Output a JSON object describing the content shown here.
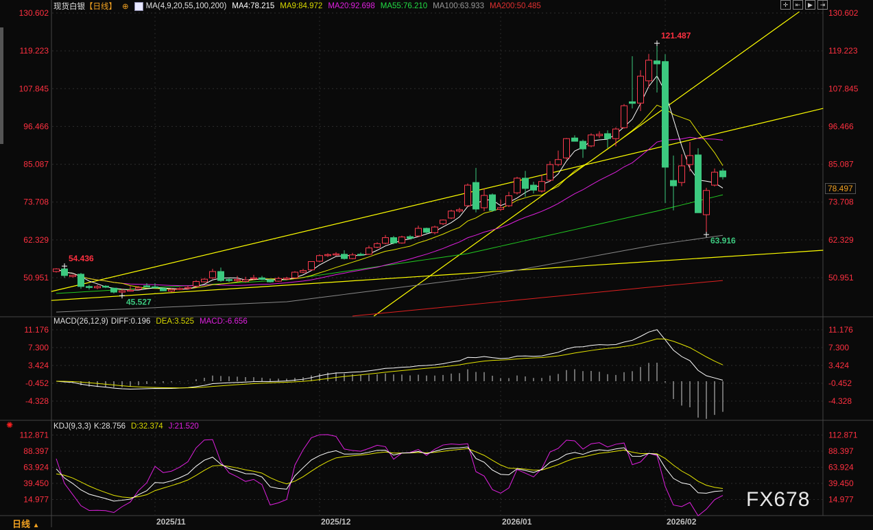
{
  "header": {
    "instrument": "现货白银",
    "period_tag": "【日线】",
    "ma_params": "MA(4,9,20,55,100,200)",
    "ma4": "MA4:78.215",
    "ma9": "MA9:84.972",
    "ma20": "MA20:92.698",
    "ma55": "MA55:76.210",
    "ma100": "MA100:63.933",
    "ma200": "MA200:50.485"
  },
  "macd_header": {
    "params": "MACD(26,12,9)",
    "diff": "DIFF:0.196",
    "dea": "DEA:3.525",
    "macd": "MACD:-6.656"
  },
  "kdj_header": {
    "params": "KDJ(9,3,3)",
    "k": "K:28.756",
    "d": "D:32.374",
    "j": "J:21.520"
  },
  "footer": {
    "period": "日线",
    "period_icon": "triangle-up-icon",
    "watermark": "FX678"
  },
  "current_price_tag": "78.497",
  "colors": {
    "up": "#ff3b4e",
    "down": "#3cc97f",
    "ma4": "#ffffff",
    "ma9": "#e6e600",
    "ma20": "#e020e0",
    "ma55": "#22cc22",
    "ma100": "#888888",
    "ma200": "#e02020",
    "trendline": "#ffff00",
    "axis_text": "#ff3040"
  },
  "chart_data": [
    {
      "type": "candlestick",
      "title": "现货白银【日线】",
      "ylim": [
        39.2,
        134.5
      ],
      "y_ticks": [
        "130.602",
        "119.223",
        "107.845",
        "96.466",
        "85.087",
        "73.708",
        "62.329",
        "50.951"
      ],
      "x_month_labels": [
        {
          "index": 12,
          "label": "2025/11"
        },
        {
          "index": 32,
          "label": "2025/12"
        },
        {
          "index": 54,
          "label": "2026/01"
        },
        {
          "index": 74,
          "label": "2026/02"
        }
      ],
      "annotations": [
        {
          "index": 1,
          "value": 54.436,
          "text": "54.436",
          "pos": "high"
        },
        {
          "index": 8,
          "value": 45.527,
          "text": "45.527",
          "pos": "low"
        },
        {
          "index": 73,
          "value": 121.487,
          "text": "121.487",
          "pos": "high"
        },
        {
          "index": 79,
          "value": 63.916,
          "text": "63.916",
          "pos": "low"
        }
      ],
      "ohlc": [
        [
          52.8,
          53.8,
          52.5,
          53.6
        ],
        [
          53.6,
          54.44,
          50.9,
          51.6
        ],
        [
          51.3,
          51.9,
          51.0,
          51.7
        ],
        [
          52.0,
          52.4,
          47.6,
          48.3
        ],
        [
          48.3,
          48.8,
          47.4,
          48.1
        ],
        [
          47.9,
          48.8,
          47.5,
          48.3
        ],
        [
          48.4,
          48.7,
          47.8,
          48.1
        ],
        [
          47.8,
          47.9,
          46.2,
          46.6
        ],
        [
          46.6,
          47.6,
          45.53,
          47.0
        ],
        [
          46.9,
          48.4,
          46.8,
          47.2
        ],
        [
          47.5,
          48.4,
          47.2,
          48.0
        ],
        [
          48.5,
          49.3,
          48.2,
          48.3
        ],
        [
          48.2,
          49.3,
          47.8,
          48.0
        ],
        [
          47.7,
          47.9,
          46.9,
          47.0
        ],
        [
          46.9,
          47.8,
          46.6,
          47.4
        ],
        [
          47.5,
          48.0,
          47.2,
          47.7
        ],
        [
          47.7,
          48.5,
          47.4,
          48.0
        ],
        [
          48.4,
          50.2,
          48.0,
          49.8
        ],
        [
          49.7,
          50.8,
          49.5,
          50.5
        ],
        [
          50.9,
          53.6,
          50.6,
          52.8
        ],
        [
          52.8,
          54.0,
          49.7,
          50.1
        ],
        [
          50.4,
          51.0,
          49.6,
          50.2
        ],
        [
          50.3,
          51.5,
          49.5,
          50.4
        ],
        [
          49.8,
          51.2,
          49.5,
          50.3
        ],
        [
          50.6,
          51.8,
          50.3,
          50.9
        ],
        [
          50.9,
          51.5,
          50.2,
          50.4
        ],
        [
          50.3,
          50.6,
          49.5,
          49.7
        ],
        [
          49.9,
          51.2,
          49.7,
          50.7
        ],
        [
          50.5,
          51.2,
          50.2,
          50.8
        ],
        [
          50.9,
          52.9,
          50.6,
          52.6
        ],
        [
          52.6,
          53.6,
          52.3,
          53.1
        ],
        [
          53.3,
          55.9,
          53.0,
          55.8
        ],
        [
          55.9,
          58.0,
          55.6,
          57.6
        ],
        [
          57.6,
          58.3,
          57.2,
          57.9
        ],
        [
          57.8,
          58.6,
          57.5,
          58.1
        ],
        [
          58.0,
          59.2,
          56.4,
          56.7
        ],
        [
          56.7,
          58.4,
          56.5,
          57.8
        ],
        [
          58.0,
          58.5,
          57.6,
          57.9
        ],
        [
          58.0,
          60.6,
          57.8,
          59.9
        ],
        [
          60.1,
          61.6,
          59.8,
          61.2
        ],
        [
          61.3,
          63.8,
          61.0,
          63.0
        ],
        [
          63.0,
          63.5,
          61.0,
          61.4
        ],
        [
          61.4,
          63.6,
          61.2,
          63.2
        ],
        [
          63.3,
          63.8,
          62.5,
          62.8
        ],
        [
          63.5,
          66.6,
          63.2,
          65.8
        ],
        [
          65.8,
          66.0,
          64.3,
          64.6
        ],
        [
          64.5,
          66.6,
          64.0,
          66.2
        ],
        [
          67.2,
          68.5,
          66.8,
          68.3
        ],
        [
          68.9,
          71.4,
          68.6,
          71.0
        ],
        [
          71.0,
          72.0,
          70.5,
          71.4
        ],
        [
          72.6,
          79.3,
          72.3,
          78.8
        ],
        [
          79.6,
          84.0,
          70.6,
          71.6
        ],
        [
          72.0,
          77.8,
          71.0,
          75.7
        ],
        [
          75.9,
          76.3,
          70.8,
          71.2
        ],
        [
          71.5,
          74.5,
          71.0,
          72.0
        ],
        [
          72.6,
          76.8,
          72.2,
          75.6
        ],
        [
          76.5,
          81.3,
          76.0,
          80.9
        ],
        [
          80.9,
          83.1,
          75.3,
          77.8
        ],
        [
          78.8,
          79.8,
          76.3,
          77.3
        ],
        [
          77.0,
          82.0,
          76.6,
          79.9
        ],
        [
          80.3,
          86.0,
          79.8,
          85.0
        ],
        [
          85.0,
          89.2,
          84.5,
          86.5
        ],
        [
          87.0,
          93.0,
          86.5,
          92.8
        ],
        [
          93.0,
          93.8,
          92.0,
          92.0
        ],
        [
          92.0,
          92.5,
          87.0,
          89.7
        ],
        [
          90.6,
          94.4,
          90.2,
          93.9
        ],
        [
          93.7,
          95.0,
          93.0,
          94.1
        ],
        [
          94.3,
          95.3,
          90.0,
          92.8
        ],
        [
          92.8,
          96.2,
          90.5,
          95.7
        ],
        [
          96.1,
          103.2,
          95.8,
          102.7
        ],
        [
          103.9,
          117.6,
          101.9,
          103.4
        ],
        [
          103.5,
          113.4,
          101.1,
          111.6
        ],
        [
          110.2,
          118.3,
          108.2,
          116.4
        ],
        [
          116.2,
          121.487,
          106.7,
          115.3
        ],
        [
          116.0,
          118.2,
          73.4,
          84.2
        ],
        [
          80.2,
          87.7,
          71.2,
          78.6
        ],
        [
          79.6,
          88.1,
          78.5,
          84.6
        ],
        [
          85.0,
          91.8,
          82.9,
          87.7
        ],
        [
          87.9,
          89.9,
          70.5,
          70.5
        ],
        [
          69.9,
          78.0,
          63.916,
          77.2
        ],
        [
          78.8,
          83.8,
          78.4,
          82.7
        ],
        [
          83.1,
          83.8,
          80.5,
          81.3
        ]
      ],
      "moving_averages": {
        "computed_periods": [
          4,
          9,
          20
        ],
        "ma55": [
          [
            0,
            46.2
          ],
          [
            28,
            50.3
          ],
          [
            50,
            58.2
          ],
          [
            73,
            71.0
          ],
          [
            81,
            75.9
          ]
        ],
        "ma100": [
          [
            0,
            40.6
          ],
          [
            28,
            43.7
          ],
          [
            51,
            50.95
          ],
          [
            73,
            60.9
          ],
          [
            81,
            63.7
          ]
        ],
        "ma200": [
          [
            36,
            39.4
          ],
          [
            73,
            48.3
          ],
          [
            81,
            50.1
          ]
        ]
      },
      "trendlines": [
        [
          [
            -0.6,
            44.1
          ],
          [
            93.2,
            59.2
          ]
        ],
        [
          [
            -0.6,
            46.8
          ],
          [
            93.2,
            101.9
          ]
        ],
        [
          [
            38.6,
            39.4
          ],
          [
            90.3,
            131.0
          ]
        ]
      ]
    },
    {
      "type": "line",
      "title": "MACD(26,12,9)",
      "series": [
        {
          "name": "DIFF"
        },
        {
          "name": "DEA"
        },
        {
          "name": "MACD"
        }
      ],
      "params": [
        26,
        12,
        9
      ],
      "y_ticks": [
        "11.176",
        "7.300",
        "3.424",
        "-0.452",
        "-4.328"
      ]
    },
    {
      "type": "line",
      "title": "KDJ(9,3,3)",
      "series": [
        {
          "name": "K"
        },
        {
          "name": "D"
        },
        {
          "name": "J"
        }
      ],
      "params": [
        9,
        3,
        3
      ],
      "y_ticks": [
        "112.871",
        "88.397",
        "63.924",
        "39.450",
        "14.977"
      ]
    }
  ]
}
